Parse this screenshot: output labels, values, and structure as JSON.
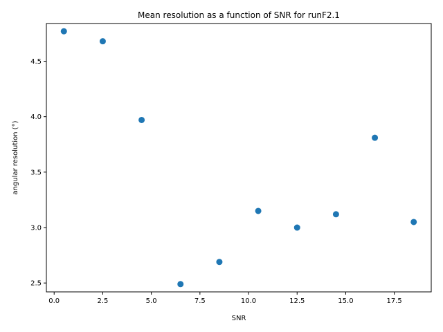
{
  "chart_data": {
    "type": "scatter",
    "title": "Mean resolution as a function of SNR for runF2.1",
    "xlabel": "SNR",
    "ylabel": "angular resolution (°)",
    "xlim": [
      -0.4,
      19.4
    ],
    "ylim": [
      2.42,
      4.84
    ],
    "xticks": [
      0.0,
      2.5,
      5.0,
      7.5,
      10.0,
      12.5,
      15.0,
      17.5
    ],
    "xtick_labels": [
      "0.0",
      "2.5",
      "5.0",
      "7.5",
      "10.0",
      "12.5",
      "15.0",
      "17.5"
    ],
    "yticks": [
      2.5,
      3.0,
      3.5,
      4.0,
      4.5
    ],
    "ytick_labels": [
      "2.5",
      "3.0",
      "3.5",
      "4.0",
      "4.5"
    ],
    "grid": false,
    "color": "#1f77b4",
    "points": [
      {
        "x": 0.5,
        "y": 4.77
      },
      {
        "x": 2.5,
        "y": 4.68
      },
      {
        "x": 4.5,
        "y": 3.97
      },
      {
        "x": 6.5,
        "y": 2.49
      },
      {
        "x": 8.5,
        "y": 2.69
      },
      {
        "x": 10.5,
        "y": 3.15
      },
      {
        "x": 12.5,
        "y": 3.0
      },
      {
        "x": 14.5,
        "y": 3.12
      },
      {
        "x": 16.5,
        "y": 3.81
      },
      {
        "x": 18.5,
        "y": 3.05
      }
    ]
  }
}
